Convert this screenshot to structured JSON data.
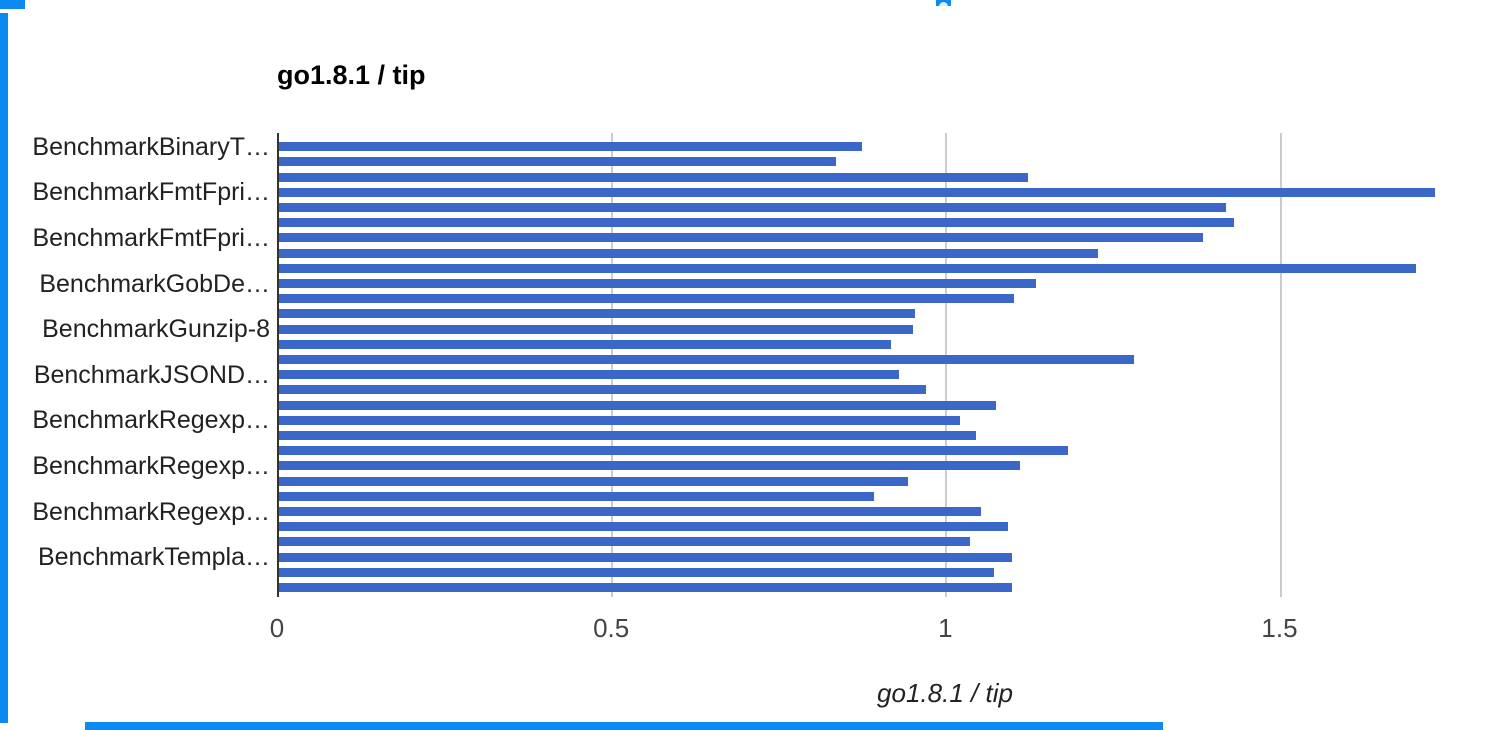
{
  "chart_data": {
    "type": "bar",
    "orientation": "horizontal",
    "title": "go1.8.1 / tip",
    "xlabel": "go1.8.1 / tip",
    "ylabel": "",
    "xlim": [
      0,
      1.8
    ],
    "x_ticks": [
      0,
      0.5,
      1,
      1.5
    ],
    "x_tick_labels": [
      "0",
      "0.5",
      "1",
      "1.5"
    ],
    "grid": true,
    "legend": "none",
    "bar_color": "#3b67c8",
    "row_labels": [
      "BenchmarkBinaryT…",
      "",
      "",
      "BenchmarkFmtFpri…",
      "",
      "",
      "BenchmarkFmtFpri…",
      "",
      "",
      "BenchmarkGobDe…",
      "",
      "",
      "BenchmarkGunzip-8",
      "",
      "",
      "BenchmarkJSOND…",
      "",
      "",
      "BenchmarkRegexp…",
      "",
      "",
      "BenchmarkRegexp…",
      "",
      "",
      "BenchmarkRegexp…",
      "",
      "",
      "BenchmarkTempla…",
      "",
      ""
    ],
    "values": [
      0.873,
      0.834,
      1.121,
      1.729,
      1.417,
      1.429,
      1.382,
      1.226,
      1.701,
      1.133,
      1.1,
      0.952,
      0.948,
      0.915,
      1.279,
      0.927,
      0.968,
      1.073,
      1.019,
      1.043,
      1.181,
      1.109,
      0.941,
      0.89,
      1.051,
      1.091,
      1.034,
      1.097,
      1.07,
      1.097
    ]
  },
  "axis_colors": {
    "gridline": "#cccccc",
    "baseline": "#333333",
    "tick_text": "#444444",
    "label_text": "#222222"
  },
  "decorations": {
    "edge_highlight_color": "#0d8af2"
  }
}
